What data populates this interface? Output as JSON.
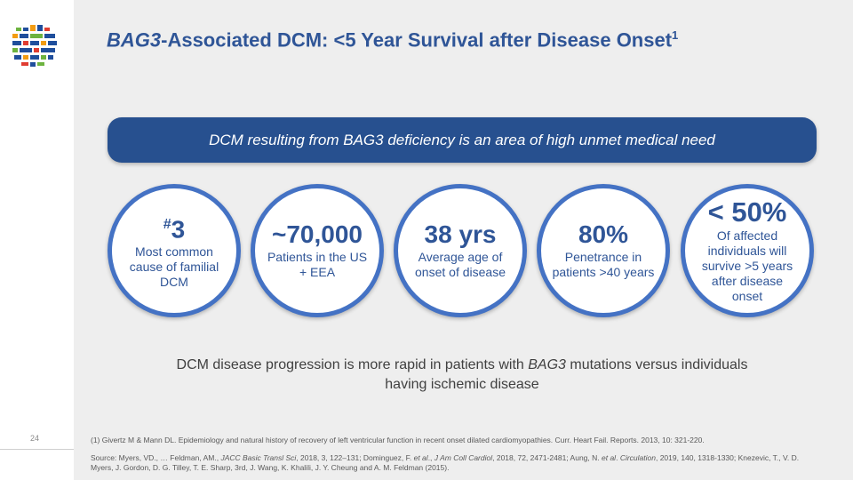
{
  "header": {
    "title_gene": "BAG3",
    "title_rest": "-Associated DCM: <5 Year Survival after Disease Onset",
    "title_sup": "1"
  },
  "banner": {
    "text": "DCM resulting from BAG3 deficiency is an area of high unmet medical need"
  },
  "stats": [
    {
      "prefix": "#",
      "value": "3",
      "description": "Most common cause of familial DCM"
    },
    {
      "value": "~70,000",
      "description": "Patients in the US + EEA"
    },
    {
      "value": "38 yrs",
      "description": "Average age of onset of disease"
    },
    {
      "value": "80%",
      "description": "Penetrance in patients >40 years"
    },
    {
      "value": "< 50%",
      "description": "Of affected individuals will survive >5 years after disease onset"
    }
  ],
  "progression": {
    "part1": "DCM disease progression is more rapid in patients with ",
    "gene": "BAG3",
    "part2": " mutations versus individuals having ischemic disease"
  },
  "footer": {
    "page_number": "24",
    "footnote": "(1)    Givertz M & Mann DL. Epidemiology and natural history of recovery of left ventricular  function in recent onset dilated cardiomyopathies. Curr. Heart Fail. Reports. 2013, 10: 321-220.",
    "source_prefix": "Source: Myers, VD., … Feldman, AM., ",
    "source_j1": "JACC Basic Transl Sci",
    "source_mid1": ", 2018, 3, 122–131; Dominguez, F. ",
    "source_etal1": "et al",
    "source_mid2": "., ",
    "source_j2": "J Am Coll Cardiol",
    "source_mid3": ", 2018, 72, 2471-2481; Aung, N. ",
    "source_etal2": "et al",
    "source_mid4": ". ",
    "source_j3": "Circulation",
    "source_end": ", 2019, 140, 1318-1330; Knezevic, T., V. D. Myers, J. Gordon, D. G. Tilley, T. E. Sharp, 3rd, J. Wang, K. Khalili, J. Y. Cheung and A. M. Feldman (2015)."
  },
  "colors": {
    "title": "#2f5597",
    "banner": "#27508f",
    "circle_border": "#4472c4",
    "logo_blue": "#1f4e9c",
    "logo_green": "#6db33f",
    "logo_orange": "#f39c12",
    "logo_red": "#e03c31"
  },
  "icons": {
    "logo": "company-logo-globe"
  }
}
